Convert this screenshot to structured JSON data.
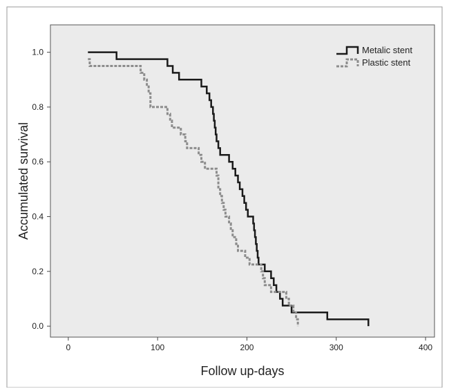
{
  "chart_data": {
    "type": "line",
    "title": "",
    "xlabel": "Follow up-days",
    "ylabel": "Accumulated survival",
    "xlim": [
      -20,
      410
    ],
    "ylim": [
      -0.04,
      1.1
    ],
    "x_ticks": [
      "0",
      "100",
      "200",
      "300",
      "400"
    ],
    "y_ticks": [
      "0.0",
      "0.2",
      "0.4",
      "0.6",
      "0.8",
      "1.0"
    ],
    "x_tick_values": [
      0,
      100,
      200,
      300,
      400
    ],
    "y_tick_values": [
      0,
      0.2,
      0.4,
      0.6,
      0.8,
      1.0
    ],
    "grid": false,
    "legend_position": "top-right",
    "background_color": "#ebebeb",
    "series": [
      {
        "name": "Metalic stent",
        "color": "#1a1a1a",
        "style": "solid",
        "step_points": [
          [
            22,
            1.0
          ],
          [
            54,
            0.975
          ],
          [
            111,
            0.95
          ],
          [
            117,
            0.925
          ],
          [
            124,
            0.9
          ],
          [
            149,
            0.875
          ],
          [
            155,
            0.85
          ],
          [
            158,
            0.825
          ],
          [
            160,
            0.8
          ],
          [
            162,
            0.775
          ],
          [
            163,
            0.75
          ],
          [
            164,
            0.725
          ],
          [
            165,
            0.7
          ],
          [
            166,
            0.675
          ],
          [
            168,
            0.65
          ],
          [
            170,
            0.625
          ],
          [
            180,
            0.6
          ],
          [
            184,
            0.575
          ],
          [
            187,
            0.55
          ],
          [
            190,
            0.525
          ],
          [
            192,
            0.5
          ],
          [
            195,
            0.475
          ],
          [
            197,
            0.45
          ],
          [
            199,
            0.425
          ],
          [
            201,
            0.4
          ],
          [
            207,
            0.375
          ],
          [
            208,
            0.35
          ],
          [
            209,
            0.325
          ],
          [
            210,
            0.3
          ],
          [
            211,
            0.275
          ],
          [
            212,
            0.25
          ],
          [
            213,
            0.225
          ],
          [
            220,
            0.2
          ],
          [
            227,
            0.175
          ],
          [
            230,
            0.15
          ],
          [
            233,
            0.125
          ],
          [
            237,
            0.1
          ],
          [
            240,
            0.075
          ],
          [
            250,
            0.05
          ],
          [
            290,
            0.025
          ],
          [
            336,
            0.0
          ]
        ]
      },
      {
        "name": "Plastic stent",
        "color": "#8c8c8c",
        "style": "dashed",
        "step_points": [
          [
            22,
            0.975
          ],
          [
            24,
            0.95
          ],
          [
            81,
            0.925
          ],
          [
            85,
            0.9
          ],
          [
            88,
            0.875
          ],
          [
            90,
            0.85
          ],
          [
            92,
            0.8
          ],
          [
            103,
            0.8
          ],
          [
            111,
            0.775
          ],
          [
            114,
            0.75
          ],
          [
            116,
            0.725
          ],
          [
            126,
            0.7
          ],
          [
            131,
            0.675
          ],
          [
            133,
            0.65
          ],
          [
            146,
            0.625
          ],
          [
            149,
            0.6
          ],
          [
            153,
            0.575
          ],
          [
            166,
            0.55
          ],
          [
            168,
            0.5
          ],
          [
            170,
            0.475
          ],
          [
            172,
            0.45
          ],
          [
            174,
            0.425
          ],
          [
            176,
            0.4
          ],
          [
            180,
            0.375
          ],
          [
            182,
            0.35
          ],
          [
            184,
            0.325
          ],
          [
            188,
            0.3
          ],
          [
            190,
            0.275
          ],
          [
            198,
            0.25
          ],
          [
            203,
            0.225
          ],
          [
            216,
            0.2
          ],
          [
            218,
            0.175
          ],
          [
            220,
            0.15
          ],
          [
            227,
            0.125
          ],
          [
            244,
            0.1
          ],
          [
            247,
            0.075
          ],
          [
            252,
            0.05
          ],
          [
            255,
            0.025
          ],
          [
            257,
            0.0
          ]
        ]
      }
    ]
  }
}
